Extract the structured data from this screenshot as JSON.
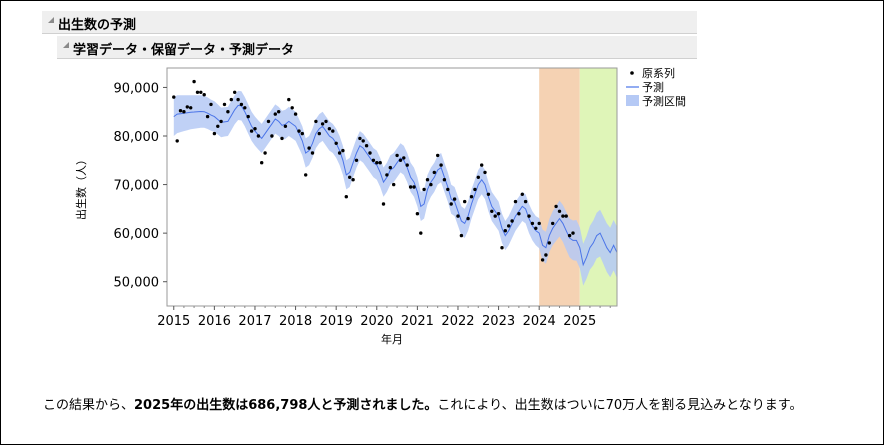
{
  "report": {
    "outline_title": "出生数の予測",
    "sub_title": "学習データ・保留データ・予測データ"
  },
  "chart_data": {
    "type": "line",
    "title": "",
    "xlabel": "年月",
    "ylabel": "出生数（人）",
    "xlim": [
      "2014-11",
      "2025-12"
    ],
    "ylim": [
      45000,
      94000
    ],
    "x_ticks": [
      "2015",
      "2016",
      "2017",
      "2018",
      "2019",
      "2020",
      "2021",
      "2022",
      "2023",
      "2024",
      "2025"
    ],
    "y_ticks": [
      50000,
      60000,
      70000,
      80000,
      90000
    ],
    "y_tick_labels": [
      "50,000",
      "60,000",
      "70,000",
      "80,000",
      "90,000"
    ],
    "legend": {
      "position": "top-right",
      "entries": [
        "原系列",
        "予測",
        "予測区間"
      ]
    },
    "regions": [
      {
        "start": "2024-01",
        "end": "2024-12",
        "color": "#f5d2b3"
      },
      {
        "start": "2025-01",
        "end": "2025-12",
        "color": "#dff5b8"
      }
    ],
    "colors": {
      "actual": "#000000",
      "forecast": "#4a74e8",
      "interval": "#b5c9f5"
    },
    "series": [
      {
        "name": "原系列",
        "kind": "points",
        "start": "2015-01",
        "values": [
          88000,
          79000,
          85200,
          85000,
          86000,
          85800,
          91200,
          89000,
          89000,
          88500,
          84000,
          86500,
          80500,
          82000,
          83000,
          86500,
          85000,
          87500,
          89000,
          87500,
          86500,
          85800,
          84000,
          81000,
          81500,
          80000,
          74500,
          76500,
          83000,
          80000,
          84500,
          85000,
          79500,
          82000,
          87500,
          85800,
          84500,
          81000,
          80500,
          72000,
          77500,
          76500,
          83000,
          80500,
          82500,
          83000,
          81500,
          81000,
          78500,
          76500,
          77000,
          67500,
          71500,
          71000,
          75000,
          79500,
          79000,
          78000,
          76500,
          75000,
          74500,
          74500,
          66000,
          72000,
          73500,
          70000,
          76000,
          75000,
          75500,
          74000,
          69500,
          69500,
          64000,
          60000,
          69000,
          71000,
          70000,
          72500,
          76000,
          74000,
          71000,
          69000,
          66000,
          67000,
          63500,
          59500,
          66500,
          63000,
          67500,
          69000,
          71500,
          74000,
          72500,
          68000,
          64500,
          63500,
          64000,
          57000,
          60500,
          61500,
          62500,
          66500,
          64000,
          68000,
          66500,
          63500,
          62000,
          61000,
          62000,
          54500,
          55500,
          58000,
          62000,
          65500,
          64500,
          63500,
          63500,
          59500,
          60000
        ]
      },
      {
        "name": "予測",
        "kind": "line",
        "start": "2015-01",
        "values": [
          84000,
          84500,
          84600,
          84700,
          84800,
          84900,
          84950,
          85000,
          85050,
          85000,
          84700,
          84300,
          84000,
          83400,
          82800,
          82900,
          83000,
          84200,
          85400,
          86300,
          86200,
          85000,
          83500,
          82000,
          81000,
          80200,
          79500,
          80500,
          81500,
          82500,
          83500,
          83000,
          82200,
          82400,
          83000,
          82500,
          82000,
          80500,
          79000,
          76500,
          77000,
          78500,
          80500,
          81500,
          82000,
          81000,
          80000,
          79500,
          78500,
          77000,
          75000,
          72000,
          72500,
          74500,
          76500,
          78000,
          77500,
          76500,
          75500,
          74500,
          74000,
          72500,
          70500,
          71500,
          73000,
          73500,
          74500,
          75500,
          75000,
          73500,
          71500,
          70500,
          68500,
          65500,
          66000,
          69000,
          70500,
          71500,
          73000,
          73500,
          71500,
          69500,
          67000,
          66500,
          64500,
          62500,
          62000,
          63500,
          66000,
          68000,
          70000,
          71000,
          70000,
          67500,
          65500,
          64500,
          63500,
          61000,
          59500,
          60500,
          62000,
          63500,
          64500,
          65500,
          65000,
          63000,
          61500,
          60500,
          60000,
          57500,
          57000,
          59500,
          61000,
          62000,
          63000,
          62000,
          60500,
          59000,
          58500,
          58500,
          57000,
          53500,
          55000,
          57000,
          58000,
          59500,
          60000,
          58500,
          57000,
          56000,
          57500,
          56000
        ]
      }
    ],
    "interval_halfwidth": {
      "start": "2015-01",
      "values": [
        4000,
        3900,
        3800,
        3700,
        3600,
        3500,
        3450,
        3400,
        3350,
        3300,
        3250,
        3200,
        3150,
        3100,
        3050,
        3000,
        3000,
        3000,
        3000,
        3000,
        3000,
        3000,
        3000,
        3000,
        3000,
        3000,
        3000,
        3000,
        3000,
        3000,
        3000,
        3000,
        3000,
        3000,
        3000,
        3000,
        3000,
        3000,
        3000,
        3000,
        3000,
        3000,
        3000,
        3000,
        3000,
        3000,
        3000,
        3000,
        3000,
        3000,
        3000,
        3000,
        3000,
        3000,
        3000,
        3000,
        3000,
        3000,
        3000,
        3000,
        3000,
        3000,
        3000,
        3000,
        3000,
        3000,
        3000,
        3000,
        3000,
        3000,
        3000,
        3000,
        3000,
        3000,
        3000,
        3000,
        3000,
        3000,
        3000,
        3000,
        3000,
        3000,
        3000,
        3000,
        3000,
        3000,
        3000,
        3000,
        3000,
        3000,
        3000,
        3000,
        3000,
        3000,
        3000,
        3000,
        3000,
        3000,
        3000,
        3000,
        3000,
        3000,
        3000,
        3000,
        3000,
        3000,
        3000,
        3000,
        3100,
        3200,
        3300,
        3400,
        3500,
        3600,
        3700,
        3800,
        3900,
        4000,
        4100,
        4200,
        4200,
        4300,
        4400,
        4500,
        4600,
        4700,
        4800,
        4900,
        5000,
        5100,
        5200,
        5300
      ]
    }
  },
  "caption": {
    "text_before": "この結果から、",
    "text_bold": "2025年の出生数は686,798人と予測されました。",
    "text_after": "これにより、出生数はついに70万人を割る見込みとなります。"
  }
}
